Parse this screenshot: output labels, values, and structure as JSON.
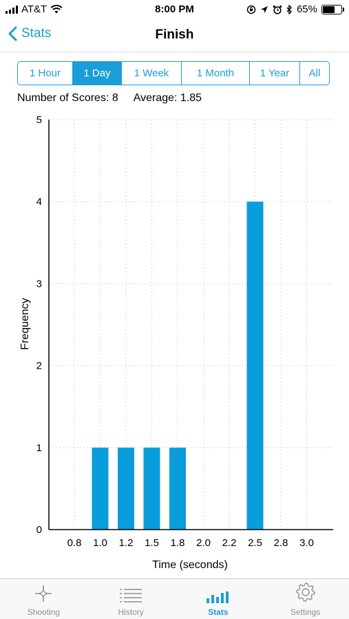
{
  "status_bar": {
    "carrier": "AT&T",
    "time": "8:00 PM",
    "battery": "65%",
    "battery_level": 0.65
  },
  "nav": {
    "back_label": "Stats",
    "title": "Finish"
  },
  "segments": [
    {
      "label": "1 Hour",
      "active": false
    },
    {
      "label": "1 Day",
      "active": true
    },
    {
      "label": "1 Week",
      "active": false
    },
    {
      "label": "1 Month",
      "active": false
    },
    {
      "label": "1 Year",
      "active": false
    },
    {
      "label": "All",
      "active": false
    }
  ],
  "summary": {
    "count_text": "Number of Scores: 8",
    "average_text": "Average: 1.85"
  },
  "chart_data": {
    "type": "bar",
    "categories": [
      "0.8",
      "1.0",
      "1.2",
      "1.5",
      "1.8",
      "2.0",
      "2.2",
      "2.5",
      "2.8",
      "3.0"
    ],
    "values": [
      0,
      1,
      1,
      1,
      1,
      0,
      0,
      4,
      0,
      0
    ],
    "xlabel": "Time (seconds)",
    "ylabel": "Frequency",
    "ylim": [
      0,
      5
    ],
    "yticks": [
      "0",
      "1",
      "2",
      "3",
      "4",
      "5"
    ],
    "grid": true,
    "color": "#0a9ddc"
  },
  "tabs": [
    {
      "label": "Shooting",
      "icon": "crosshair-icon",
      "active": false
    },
    {
      "label": "History",
      "icon": "list-icon",
      "active": false
    },
    {
      "label": "Stats",
      "icon": "bar-chart-icon",
      "active": true
    },
    {
      "label": "Settings",
      "icon": "gear-icon",
      "active": false
    }
  ],
  "colors": {
    "accent": "#1a9ed8",
    "inactive": "#8e8e8e"
  }
}
